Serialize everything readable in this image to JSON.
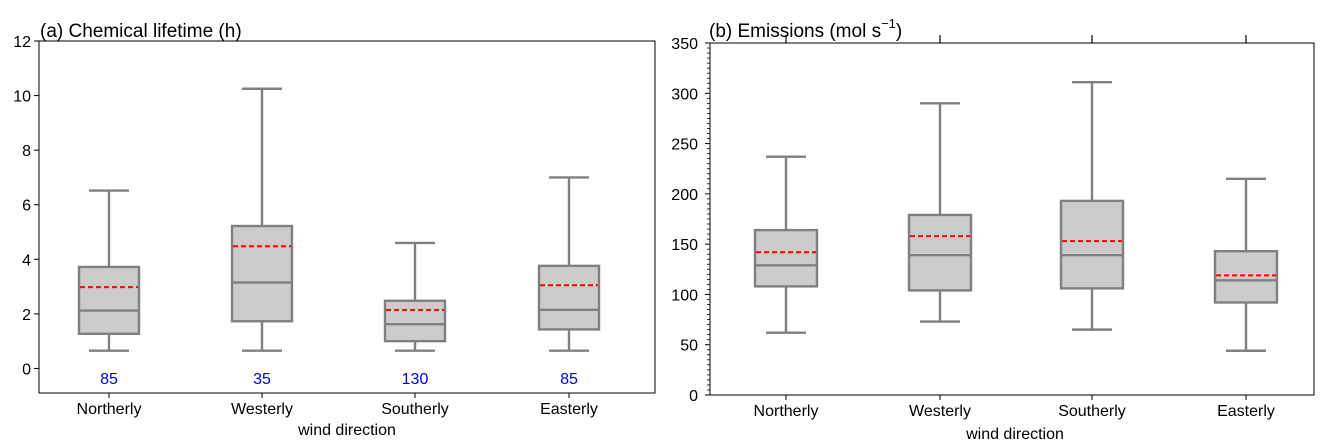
{
  "chart_data": [
    {
      "type": "box",
      "title": "(a) Chemical lifetime (h)",
      "xlabel": "wind direction",
      "ylabel": "",
      "ylim": [
        -0.9,
        12
      ],
      "yticks": [
        0,
        2,
        4,
        6,
        8,
        10,
        12
      ],
      "categories": [
        "Northerly",
        "Westerly",
        "Southerly",
        "Easterly"
      ],
      "boxes": [
        {
          "whisker_low": 0.65,
          "q1": 1.27,
          "median": 2.12,
          "q3": 3.72,
          "whisker_high": 6.52,
          "mean": 2.98
        },
        {
          "whisker_low": 0.65,
          "q1": 1.73,
          "median": 3.15,
          "q3": 5.22,
          "whisker_high": 10.25,
          "mean": 4.48
        },
        {
          "whisker_low": 0.65,
          "q1": 1.0,
          "median": 1.62,
          "q3": 2.48,
          "whisker_high": 4.6,
          "mean": 2.14
        },
        {
          "whisker_low": 0.65,
          "q1": 1.43,
          "median": 2.15,
          "q3": 3.76,
          "whisker_high": 7.0,
          "mean": 3.05
        }
      ],
      "counts": [
        "85",
        "35",
        "130",
        "85"
      ],
      "count_color": "#0000ee",
      "box_fill": "#cccccc",
      "box_edge": "#808080",
      "mean_color": "#ff0000",
      "grid": false
    },
    {
      "type": "box",
      "title_main": "(b) Emissions (mol s",
      "title_sup": "−1",
      "title_end": ")",
      "xlabel": "wind direction",
      "ylabel": "",
      "ylim": [
        0,
        350
      ],
      "yticks": [
        0,
        50,
        100,
        150,
        200,
        250,
        300,
        350
      ],
      "categories": [
        "Northerly",
        "Westerly",
        "Southerly",
        "Easterly"
      ],
      "boxes": [
        {
          "whisker_low": 62,
          "q1": 108,
          "median": 129,
          "q3": 164,
          "whisker_high": 237,
          "mean": 142
        },
        {
          "whisker_low": 73,
          "q1": 104,
          "median": 139,
          "q3": 179,
          "whisker_high": 290,
          "mean": 158
        },
        {
          "whisker_low": 65,
          "q1": 106,
          "median": 139,
          "q3": 193,
          "whisker_high": 311,
          "mean": 153
        },
        {
          "whisker_low": 44,
          "q1": 92,
          "median": 114,
          "q3": 143,
          "whisker_high": 215,
          "mean": 119
        }
      ],
      "box_fill": "#cccccc",
      "box_edge": "#808080",
      "mean_color": "#ff0000",
      "grid": false
    }
  ]
}
